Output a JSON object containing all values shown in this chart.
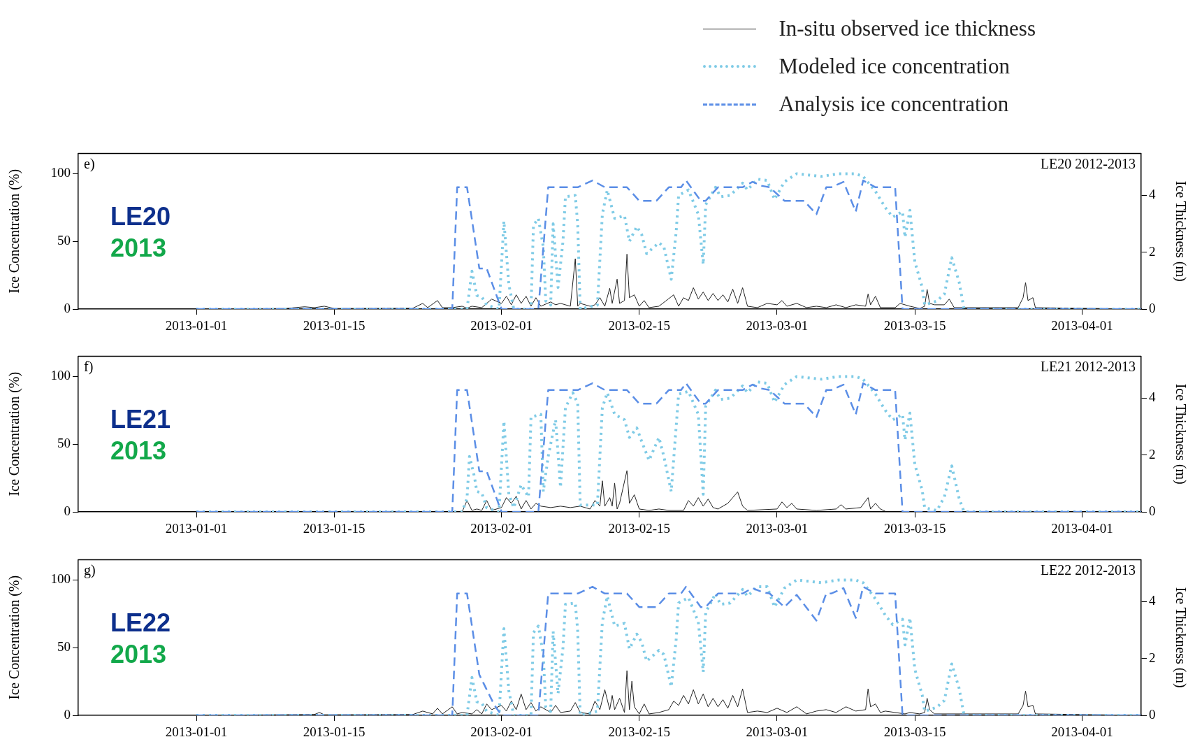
{
  "chart_data": [
    {
      "type": "line",
      "ylabel": "Ice Concentration (%)",
      "y2label": "Ice Thickness (m)",
      "legend": "top right",
      "annotations": [
        "e)",
        "LE20 2012-2013",
        "LE20",
        "2013"
      ],
      "xlim": [
        "2012-12-20",
        "2013-04-07"
      ],
      "xticks": [
        "2013-01-01",
        "2013-01-15",
        "2013-02-01",
        "2013-02-15",
        "2013-03-01",
        "2013-03-15",
        "2013-04-01"
      ],
      "ylim": [
        0,
        115
      ],
      "yticks": [
        0,
        50,
        100
      ],
      "y2lim": [
        0,
        5.47
      ],
      "y2ticks": [
        0,
        2,
        4
      ],
      "series": [
        {
          "name": "In-situ observed ice thickness",
          "color": "#222222",
          "line_style": "solid",
          "axis": "y2",
          "x": [
            "2013-01-01",
            "2013-01-10",
            "2013-01-12",
            "2013-01-13",
            "2013-01-14",
            "2013-01-15",
            "2013-01-23",
            "2013-01-24",
            "2013-01-24T12:00",
            "2013-01-25T12:00",
            "2013-01-26",
            "2013-01-27",
            "2013-01-28",
            "2013-01-28T12:00",
            "2013-01-29",
            "2013-01-30",
            "2013-01-31",
            "2013-02-01",
            "2013-02-01T12:00",
            "2013-02-02",
            "2013-02-02T12:00",
            "2013-02-03",
            "2013-02-03T12:00",
            "2013-02-04",
            "2013-02-04T12:00",
            "2013-02-05",
            "2013-02-06",
            "2013-02-06T12:00",
            "2013-02-07",
            "2013-02-08",
            "2013-02-08T12:00",
            "2013-02-08T18:00",
            "2013-02-09",
            "2013-02-10",
            "2013-02-10T12:00",
            "2013-02-11",
            "2013-02-11T12:00",
            "2013-02-12",
            "2013-02-12T06:00",
            "2013-02-12T18:00",
            "2013-02-13",
            "2013-02-13T12:00",
            "2013-02-13T18:00",
            "2013-02-14",
            "2013-02-14T12:00",
            "2013-02-15",
            "2013-02-15T12:00",
            "2013-02-16",
            "2013-02-17",
            "2013-02-18T12:00",
            "2013-02-19",
            "2013-02-19T12:00",
            "2013-02-20",
            "2013-02-20T12:00",
            "2013-02-21",
            "2013-02-21T12:00",
            "2013-02-22",
            "2013-02-22T12:00",
            "2013-02-23",
            "2013-02-23T12:00",
            "2013-02-24",
            "2013-02-24T12:00",
            "2013-02-25",
            "2013-02-25T12:00",
            "2013-02-26",
            "2013-02-27",
            "2013-02-28",
            "2013-03-01",
            "2013-03-01T12:00",
            "2013-03-02",
            "2013-03-03",
            "2013-03-04",
            "2013-03-05",
            "2013-03-06",
            "2013-03-07",
            "2013-03-08",
            "2013-03-09",
            "2013-03-10",
            "2013-03-10T06:00",
            "2013-03-10T12:00",
            "2013-03-11",
            "2013-03-11T12:00",
            "2013-03-13",
            "2013-03-13T12:00",
            "2013-03-14T12:00",
            "2013-03-15T12:00",
            "2013-03-16",
            "2013-03-16T06:00",
            "2013-03-16T12:00",
            "2013-03-17",
            "2013-03-18",
            "2013-03-18T12:00",
            "2013-03-19",
            "2013-03-25T12:00",
            "2013-03-26",
            "2013-03-26T06:00",
            "2013-03-26T12:00",
            "2013-03-27",
            "2013-03-27T06:00",
            "2013-04-07"
          ],
          "values": [
            0,
            0.02,
            0.08,
            0.05,
            0.1,
            0.02,
            0.03,
            0.2,
            0.05,
            0.3,
            0.05,
            0.05,
            0.1,
            0.03,
            0.1,
            0.05,
            0.35,
            0.2,
            0.45,
            0.15,
            0.5,
            0.2,
            0.45,
            0.1,
            0.4,
            0.1,
            0.25,
            0.15,
            0.2,
            0.1,
            1.77,
            0.1,
            0.2,
            0.1,
            0.15,
            0.4,
            0.1,
            0.73,
            0.2,
            1.05,
            0.2,
            0.3,
            1.93,
            0.4,
            0.5,
            0.1,
            0.3,
            0.05,
            0.1,
            0.5,
            0.1,
            0.4,
            0.3,
            0.75,
            0.35,
            0.6,
            0.3,
            0.55,
            0.3,
            0.5,
            0.25,
            0.7,
            0.2,
            0.75,
            0.1,
            0.05,
            0.2,
            0.15,
            0.3,
            0.1,
            0.2,
            0.05,
            0.1,
            0.05,
            0.15,
            0.05,
            0.15,
            0.1,
            0.53,
            0.15,
            0.45,
            0.05,
            0.05,
            0.2,
            0.1,
            0.02,
            0.1,
            0.69,
            0.2,
            0.15,
            0.15,
            0.35,
            0.05,
            0.05,
            0.4,
            0.93,
            0.3,
            0.4,
            0.05,
            0
          ]
        },
        {
          "name": "Modeled ice concentration",
          "color": "#7fcbe6",
          "line_style": "dotted",
          "x": [
            "2013-01-01",
            "2013-01-28T12:00",
            "2013-01-29T00:00",
            "2013-01-29T12:00",
            "2013-01-30T00:00",
            "2013-01-30T12:00",
            "2013-01-31T18:00",
            "2013-02-01T06:00",
            "2013-02-01T18:00",
            "2013-02-02T06:00",
            "2013-02-04T00:00",
            "2013-02-04T06:00",
            "2013-02-04T18:00",
            "2013-02-05T06:00",
            "2013-02-05T12:00",
            "2013-02-06T00:00",
            "2013-02-06T06:00",
            "2013-02-06T18:00",
            "2013-02-07T06:00",
            "2013-02-07T12:00",
            "2013-02-08T12:00",
            "2013-02-08T18:00",
            "2013-02-09T00:00",
            "2013-02-10T18:00",
            "2013-02-11T06:00",
            "2013-02-11T18:00",
            "2013-02-12T12:00",
            "2013-02-13T12:00",
            "2013-02-14T00:00",
            "2013-02-14T18:00",
            "2013-02-15T06:00",
            "2013-02-15T18:00",
            "2013-02-17T00:00",
            "2013-02-17T12:00",
            "2013-02-18T06:00",
            "2013-02-18T18:00",
            "2013-02-19T00:00",
            "2013-02-20T00:00",
            "2013-02-21T00:00",
            "2013-02-21T12:00",
            "2013-02-21T18:00",
            "2013-02-22T18:00",
            "2013-02-23T06:00",
            "2013-02-24T06:00",
            "2013-02-25T12:00",
            "2013-02-26T00:00",
            "2013-02-27T00:00",
            "2013-02-28T00:00",
            "2013-02-28T18:00",
            "2013-03-01T18:00",
            "2013-03-03T00:00",
            "2013-03-05T12:00",
            "2013-03-07T06:00",
            "2013-03-09T00:00",
            "2013-03-09T18:00",
            "2013-03-11T00:00",
            "2013-03-12T00:00",
            "2013-03-12T18:00",
            "2013-03-13T18:00",
            "2013-03-14T00:00",
            "2013-03-14T12:00",
            "2013-03-15T00:00",
            "2013-03-15T18:00",
            "2013-03-16T00:00",
            "2013-03-17T06:00",
            "2013-03-18T00:00",
            "2013-03-18T18:00",
            "2013-03-19T12:00",
            "2013-03-20T00:00",
            "2013-04-07"
          ],
          "values": [
            0,
            0,
            28,
            10,
            9,
            3,
            0,
            65,
            18,
            0,
            0,
            62,
            67,
            46,
            6,
            3,
            63,
            16,
            50,
            83,
            84,
            62,
            0,
            3,
            70,
            88,
            67,
            69,
            50,
            61,
            55,
            41,
            49,
            46,
            22,
            57,
            84,
            88,
            70,
            33,
            77,
            90,
            83,
            84,
            93,
            88,
            96,
            95,
            81,
            94,
            100,
            98,
            100,
            100,
            98,
            87,
            75,
            68,
            72,
            53,
            73,
            35,
            16,
            3,
            6,
            11,
            38,
            20,
            0,
            0
          ]
        },
        {
          "name": "Analysis ice concentration",
          "color": "#5b8ee6",
          "line_style": "dashed",
          "x": [
            "2013-01-01",
            "2013-01-27",
            "2013-01-27T12:00",
            "2013-01-28T12:00",
            "2013-01-29T18:00",
            "2013-01-30T12:00",
            "2013-02-01",
            "2013-02-04T18:00",
            "2013-02-05T18:00",
            "2013-02-08T18:00",
            "2013-02-10T06:00",
            "2013-02-11T12:00",
            "2013-02-13T18:00",
            "2013-02-15",
            "2013-02-16T18:00",
            "2013-02-18",
            "2013-02-19T06:00",
            "2013-02-19T18:00",
            "2013-02-21T06:00",
            "2013-02-21T18:00",
            "2013-02-23",
            "2013-02-25T12:00",
            "2013-02-26T12:00",
            "2013-02-27T12:00",
            "2013-02-28T06:00",
            "2013-03-01T18:00",
            "2013-03-03T18:00",
            "2013-03-05",
            "2013-03-06",
            "2013-03-06T12:00",
            "2013-03-07T18:00",
            "2013-03-09",
            "2013-03-09T18:00",
            "2013-03-11",
            "2013-03-13",
            "2013-03-13T18:00",
            "2013-04-07"
          ],
          "values": [
            0,
            0,
            90,
            90,
            30,
            30,
            0,
            0,
            90,
            90,
            95,
            90,
            90,
            80,
            80,
            90,
            90,
            95,
            80,
            80,
            90,
            90,
            94,
            91,
            90,
            80,
            80,
            70,
            90,
            90,
            94,
            72,
            95,
            90,
            90,
            0,
            0
          ]
        }
      ]
    },
    {
      "type": "line",
      "ylabel": "Ice Concentration (%)",
      "y2label": "Ice Thickness (m)",
      "annotations": [
        "f)",
        "LE21 2012-2013",
        "LE21",
        "2013"
      ],
      "xlim": [
        "2012-12-20",
        "2013-04-07"
      ],
      "xticks": [
        "2013-01-01",
        "2013-01-15",
        "2013-02-01",
        "2013-02-15",
        "2013-03-01",
        "2013-03-15",
        "2013-04-01"
      ],
      "ylim": [
        0,
        115
      ],
      "yticks": [
        0,
        50,
        100
      ],
      "y2lim": [
        0,
        5.47
      ],
      "y2ticks": [
        0,
        2,
        4
      ],
      "series": [
        {
          "color": "#222222",
          "line_style": "solid",
          "axis": "y2",
          "x": [
            "2013-01-28",
            "2013-01-28T12:00",
            "2013-01-29",
            "2013-01-29T12:00",
            "2013-01-30",
            "2013-01-30T12:00",
            "2013-01-31",
            "2013-02-01",
            "2013-02-01T12:00",
            "2013-02-02",
            "2013-02-02T12:00",
            "2013-02-03",
            "2013-02-03T12:00",
            "2013-02-04",
            "2013-02-04T12:00",
            "2013-02-05",
            "2013-02-06",
            "2013-02-07",
            "2013-02-08",
            "2013-02-09",
            "2013-02-10",
            "2013-02-10T12:00",
            "2013-02-11",
            "2013-02-11T06:00",
            "2013-02-11T12:00",
            "2013-02-12",
            "2013-02-12T06:00",
            "2013-02-12T12:00",
            "2013-02-12T18:00",
            "2013-02-13",
            "2013-02-13T18:00",
            "2013-02-14",
            "2013-02-14T12:00",
            "2013-02-15",
            "2013-02-16",
            "2013-02-17",
            "2013-02-18",
            "2013-02-19T12:00",
            "2013-02-20",
            "2013-02-20T12:00",
            "2013-02-21",
            "2013-02-21T12:00",
            "2013-02-22",
            "2013-02-22T12:00",
            "2013-02-23",
            "2013-02-24",
            "2013-02-24T12:00",
            "2013-02-25",
            "2013-02-25T12:00",
            "2013-02-26",
            "2013-03-01",
            "2013-03-01T12:00",
            "2013-03-02",
            "2013-03-02T12:00",
            "2013-03-03",
            "2013-03-05",
            "2013-03-07",
            "2013-03-07T12:00",
            "2013-03-08",
            "2013-03-09T12:00",
            "2013-03-10T06:00",
            "2013-03-10T12:00",
            "2013-03-11",
            "2013-03-11T12:00",
            "2013-03-12"
          ],
          "values": [
            0,
            0.4,
            0.05,
            0.1,
            0.05,
            0.4,
            0.05,
            0.15,
            0.5,
            0.3,
            0.55,
            0.1,
            0.4,
            0.1,
            0.3,
            0.2,
            0.15,
            0.2,
            0.15,
            0.2,
            0.1,
            0.4,
            0.2,
            1.09,
            0.2,
            0.5,
            0.2,
            1.01,
            0.1,
            0.3,
            1.45,
            0.3,
            0.6,
            0.1,
            0.05,
            0.1,
            0.05,
            0.05,
            0.4,
            0.2,
            0.5,
            0.2,
            0.45,
            0.15,
            0.1,
            0.3,
            0.5,
            0.7,
            0.2,
            0.05,
            0.1,
            0.35,
            0.15,
            0.3,
            0.1,
            0.05,
            0.1,
            0.25,
            0.1,
            0.15,
            0.5,
            0.1,
            0.3,
            0.1,
            0.02
          ]
        },
        {
          "color": "#7fcbe6",
          "line_style": "dotted",
          "x": [
            "2013-01-01",
            "2013-01-28",
            "2013-01-28T12:00",
            "2013-01-28T18:00",
            "2013-01-29T06:00",
            "2013-01-29T12:00",
            "2013-01-30T00:00",
            "2013-01-30T12:00",
            "2013-01-31T18:00",
            "2013-02-01T06:00",
            "2013-02-01T18:00",
            "2013-02-02T06:00",
            "2013-02-03T00:00",
            "2013-02-03T18:00",
            "2013-02-04T00:00",
            "2013-02-05T00:00",
            "2013-02-05T06:00",
            "2013-02-05T18:00",
            "2013-02-06T12:00",
            "2013-02-07T00:00",
            "2013-02-07T12:00",
            "2013-02-08T06:00",
            "2013-02-08T18:00",
            "2013-02-09T00:00",
            "2013-02-10T18:00",
            "2013-02-11T06:00",
            "2013-02-11T18:00",
            "2013-02-12T12:00",
            "2013-02-13T12:00",
            "2013-02-14T00:00",
            "2013-02-14T18:00",
            "2013-02-15T06:00",
            "2013-02-16T00:00",
            "2013-02-17T00:00",
            "2013-02-17T12:00",
            "2013-02-18T06:00",
            "2013-02-19T00:00",
            "2013-02-20T00:00",
            "2013-02-21T00:00",
            "2013-02-21T12:00",
            "2013-02-21T18:00",
            "2013-02-22T18:00",
            "2013-02-23T06:00",
            "2013-02-24T06:00",
            "2013-02-25T12:00",
            "2013-02-26T00:00",
            "2013-02-27T00:00",
            "2013-02-28T00:00",
            "2013-02-28T18:00",
            "2013-03-01T18:00",
            "2013-03-03T00:00",
            "2013-03-05T12:00",
            "2013-03-07T06:00",
            "2013-03-09T00:00",
            "2013-03-09T18:00",
            "2013-03-11T00:00",
            "2013-03-12T00:00",
            "2013-03-12T18:00",
            "2013-03-13T18:00",
            "2013-03-14T00:00",
            "2013-03-14T12:00",
            "2013-03-15T00:00",
            "2013-03-15T18:00",
            "2013-03-16T00:00",
            "2013-03-17T06:00",
            "2013-03-18T00:00",
            "2013-03-18T18:00",
            "2013-03-19T12:00",
            "2013-03-20T00:00",
            "2013-04-07"
          ],
          "values": [
            0,
            0,
            10,
            41,
            26,
            15,
            14,
            3,
            0,
            67,
            13,
            3,
            20,
            11,
            70,
            72,
            15,
            41,
            68,
            18,
            77,
            88,
            80,
            5,
            5,
            77,
            88,
            72,
            68,
            55,
            62,
            52,
            38,
            55,
            41,
            15,
            87,
            89,
            72,
            13,
            78,
            90,
            83,
            84,
            93,
            88,
            96,
            95,
            81,
            94,
            100,
            98,
            100,
            100,
            98,
            87,
            75,
            68,
            72,
            53,
            73,
            35,
            16,
            3,
            1,
            11,
            34,
            10,
            0,
            0
          ]
        },
        {
          "color": "#5b8ee6",
          "line_style": "dashed",
          "x": [
            "2013-01-01",
            "2013-01-27",
            "2013-01-27T12:00",
            "2013-01-28T12:00",
            "2013-01-29T18:00",
            "2013-01-30T12:00",
            "2013-02-01",
            "2013-02-04T18:00",
            "2013-02-05T18:00",
            "2013-02-08T18:00",
            "2013-02-10T06:00",
            "2013-02-11T12:00",
            "2013-02-13T18:00",
            "2013-02-15",
            "2013-02-16T18:00",
            "2013-02-18",
            "2013-02-19T06:00",
            "2013-02-19T18:00",
            "2013-02-21T06:00",
            "2013-02-21T18:00",
            "2013-02-23",
            "2013-02-25T12:00",
            "2013-02-26T12:00",
            "2013-02-27T12:00",
            "2013-02-28T06:00",
            "2013-03-01T18:00",
            "2013-03-03T18:00",
            "2013-03-05",
            "2013-03-06",
            "2013-03-06T12:00",
            "2013-03-07T18:00",
            "2013-03-09",
            "2013-03-09T18:00",
            "2013-03-11",
            "2013-03-13",
            "2013-03-13T18:00",
            "2013-04-07"
          ],
          "values": [
            0,
            0,
            90,
            90,
            30,
            30,
            0,
            0,
            90,
            90,
            95,
            90,
            90,
            80,
            80,
            90,
            90,
            95,
            80,
            80,
            90,
            90,
            94,
            91,
            90,
            80,
            80,
            70,
            90,
            90,
            94,
            72,
            95,
            90,
            90,
            0,
            0
          ]
        }
      ]
    },
    {
      "type": "line",
      "ylabel": "Ice Concentration (%)",
      "y2label": "Ice Thickness (m)",
      "annotations": [
        "g)",
        "LE22 2012-2013",
        "LE22",
        "2013"
      ],
      "xlim": [
        "2012-12-20",
        "2013-04-07"
      ],
      "xticks": [
        "2013-01-01",
        "2013-01-15",
        "2013-02-01",
        "2013-02-15",
        "2013-03-01",
        "2013-03-15",
        "2013-04-01"
      ],
      "ylim": [
        0,
        115
      ],
      "yticks": [
        0,
        50,
        100
      ],
      "y2lim": [
        0,
        5.47
      ],
      "y2ticks": [
        0,
        2,
        4
      ],
      "series": [
        {
          "color": "#222222",
          "line_style": "solid",
          "axis": "y2",
          "x": [
            "2013-01-01",
            "2013-01-13",
            "2013-01-13T12:00",
            "2013-01-14",
            "2013-01-23",
            "2013-01-24",
            "2013-01-25",
            "2013-01-25T12:00",
            "2013-01-26",
            "2013-01-27",
            "2013-01-27T12:00",
            "2013-01-28",
            "2013-01-29",
            "2013-01-29T12:00",
            "2013-01-30",
            "2013-01-30T12:00",
            "2013-01-31",
            "2013-02-01",
            "2013-02-01T12:00",
            "2013-02-02",
            "2013-02-02T12:00",
            "2013-02-03",
            "2013-02-03T12:00",
            "2013-02-04",
            "2013-02-04T12:00",
            "2013-02-05",
            "2013-02-06",
            "2013-02-06T12:00",
            "2013-02-07",
            "2013-02-08",
            "2013-02-08T12:00",
            "2013-02-09",
            "2013-02-10",
            "2013-02-10T12:00",
            "2013-02-11",
            "2013-02-11T12:00",
            "2013-02-12",
            "2013-02-12T06:00",
            "2013-02-12T12:00",
            "2013-02-13",
            "2013-02-13T12:00",
            "2013-02-13T18:00",
            "2013-02-14",
            "2013-02-14T06:00",
            "2013-02-14T12:00",
            "2013-02-15",
            "2013-02-15T12:00",
            "2013-02-16",
            "2013-02-17",
            "2013-02-18",
            "2013-02-18T12:00",
            "2013-02-19",
            "2013-02-19T12:00",
            "2013-02-20",
            "2013-02-20T12:00",
            "2013-02-21",
            "2013-02-21T12:00",
            "2013-02-22",
            "2013-02-22T12:00",
            "2013-02-23",
            "2013-02-23T12:00",
            "2013-02-24",
            "2013-02-24T12:00",
            "2013-02-25",
            "2013-02-25T12:00",
            "2013-02-26",
            "2013-02-27",
            "2013-02-28",
            "2013-03-01",
            "2013-03-02",
            "2013-03-03",
            "2013-03-04",
            "2013-03-05",
            "2013-03-06",
            "2013-03-07",
            "2013-03-08",
            "2013-03-09",
            "2013-03-10",
            "2013-03-10T06:00",
            "2013-03-10T12:00",
            "2013-03-11",
            "2013-03-11T12:00",
            "2013-03-12",
            "2013-03-13",
            "2013-03-14",
            "2013-03-14T12:00",
            "2013-03-15T12:00",
            "2013-03-16",
            "2013-03-16T06:00",
            "2013-03-16T12:00",
            "2013-03-17",
            "2013-03-25T12:00",
            "2013-03-26",
            "2013-03-26T06:00",
            "2013-03-26T12:00",
            "2013-03-27",
            "2013-03-27T06:00",
            "2013-04-07"
          ],
          "values": [
            0,
            0.03,
            0.1,
            0.02,
            0.03,
            0.15,
            0.05,
            0.25,
            0.05,
            0.3,
            0.05,
            0.1,
            0.05,
            0.2,
            0.05,
            0.4,
            0.2,
            0.35,
            0.15,
            0.5,
            0.2,
            0.75,
            0.2,
            0.45,
            0.15,
            0.3,
            0.1,
            0.35,
            0.1,
            0.15,
            0.45,
            0.1,
            0.05,
            0.5,
            0.2,
            0.9,
            0.2,
            0.7,
            0.2,
            0.6,
            0.1,
            1.57,
            0.2,
            1.2,
            0.3,
            0.05,
            0.4,
            0.05,
            0.1,
            0.2,
            0.5,
            0.35,
            0.7,
            0.4,
            0.9,
            0.4,
            0.75,
            0.3,
            0.6,
            0.3,
            0.55,
            0.25,
            0.7,
            0.3,
            0.93,
            0.1,
            0.15,
            0.1,
            0.25,
            0.1,
            0.3,
            0.05,
            0.15,
            0.2,
            0.1,
            0.3,
            0.15,
            0.2,
            0.93,
            0.3,
            0.4,
            0.1,
            0.15,
            0.1,
            0.05,
            0.1,
            0.05,
            0.1,
            0.6,
            0.2,
            0.05,
            0.05,
            0.35,
            0.85,
            0.3,
            0.35,
            0.05,
            0
          ]
        },
        {
          "color": "#7fcbe6",
          "line_style": "dotted",
          "x": [
            "2013-01-01",
            "2013-01-28T12:00",
            "2013-01-29T00:00",
            "2013-01-29T12:00",
            "2013-01-30T00:00",
            "2013-01-30T12:00",
            "2013-01-31T18:00",
            "2013-02-01T06:00",
            "2013-02-01T18:00",
            "2013-02-02T06:00",
            "2013-02-04T00:00",
            "2013-02-04T06:00",
            "2013-02-04T18:00",
            "2013-02-05T06:00",
            "2013-02-05T12:00",
            "2013-02-06T00:00",
            "2013-02-06T06:00",
            "2013-02-06T18:00",
            "2013-02-07T06:00",
            "2013-02-07T12:00",
            "2013-02-08T12:00",
            "2013-02-08T18:00",
            "2013-02-09T00:00",
            "2013-02-10T18:00",
            "2013-02-11T06:00",
            "2013-02-11T18:00",
            "2013-02-12T12:00",
            "2013-02-13T12:00",
            "2013-02-14T00:00",
            "2013-02-14T18:00",
            "2013-02-15T06:00",
            "2013-02-15T18:00",
            "2013-02-17T00:00",
            "2013-02-17T12:00",
            "2013-02-18T06:00",
            "2013-02-18T18:00",
            "2013-02-19T00:00",
            "2013-02-20T00:00",
            "2013-02-21T00:00",
            "2013-02-21T12:00",
            "2013-02-21T18:00",
            "2013-02-22T18:00",
            "2013-02-23T06:00",
            "2013-02-24T06:00",
            "2013-02-25T12:00",
            "2013-02-26T00:00",
            "2013-02-27T00:00",
            "2013-02-28T00:00",
            "2013-02-28T18:00",
            "2013-03-01T18:00",
            "2013-03-03T00:00",
            "2013-03-05T12:00",
            "2013-03-07T06:00",
            "2013-03-09T00:00",
            "2013-03-09T18:00",
            "2013-03-11T00:00",
            "2013-03-12T00:00",
            "2013-03-12T18:00",
            "2013-03-13T18:00",
            "2013-03-14T00:00",
            "2013-03-14T12:00",
            "2013-03-15T00:00",
            "2013-03-15T18:00",
            "2013-03-16T00:00",
            "2013-03-17T06:00",
            "2013-03-18T00:00",
            "2013-03-18T18:00",
            "2013-03-19T12:00",
            "2013-03-20T00:00",
            "2013-04-07"
          ],
          "values": [
            0,
            0,
            28,
            10,
            9,
            3,
            0,
            64,
            18,
            0,
            0,
            61,
            66,
            45,
            6,
            3,
            62,
            16,
            50,
            82,
            83,
            62,
            0,
            3,
            69,
            88,
            66,
            68,
            49,
            60,
            54,
            40,
            48,
            45,
            21,
            56,
            83,
            87,
            69,
            32,
            76,
            90,
            82,
            83,
            93,
            88,
            95,
            95,
            80,
            94,
            100,
            98,
            100,
            100,
            98,
            86,
            74,
            67,
            71,
            52,
            72,
            34,
            15,
            3,
            6,
            11,
            38,
            20,
            0,
            0
          ]
        },
        {
          "color": "#5b8ee6",
          "line_style": "dashed",
          "x": [
            "2013-01-01",
            "2013-01-27",
            "2013-01-27T12:00",
            "2013-01-28T12:00",
            "2013-01-29T18:00",
            "2013-01-31T06:00",
            "2013-02-01",
            "2013-02-04T18:00",
            "2013-02-05T18:00",
            "2013-02-08T18:00",
            "2013-02-10T06:00",
            "2013-02-11T12:00",
            "2013-02-13T18:00",
            "2013-02-15",
            "2013-02-16T18:00",
            "2013-02-18",
            "2013-02-19T06:00",
            "2013-02-19T18:00",
            "2013-02-21T06:00",
            "2013-02-21T18:00",
            "2013-02-23",
            "2013-02-25T12:00",
            "2013-02-26T12:00",
            "2013-02-27T12:00",
            "2013-02-28T06:00",
            "2013-03-01T18:00",
            "2013-03-03T00:00",
            "2013-03-05",
            "2013-03-06",
            "2013-03-06T12:00",
            "2013-03-07T18:00",
            "2013-03-09",
            "2013-03-09T18:00",
            "2013-03-11",
            "2013-03-13",
            "2013-03-13T18:00",
            "2013-04-07"
          ],
          "values": [
            0,
            0,
            90,
            90,
            30,
            8,
            0,
            0,
            90,
            90,
            95,
            90,
            90,
            80,
            80,
            90,
            90,
            95,
            80,
            80,
            90,
            90,
            94,
            91,
            90,
            80,
            89,
            70,
            90,
            90,
            94,
            72,
            95,
            90,
            90,
            0,
            0
          ]
        }
      ]
    }
  ]
}
